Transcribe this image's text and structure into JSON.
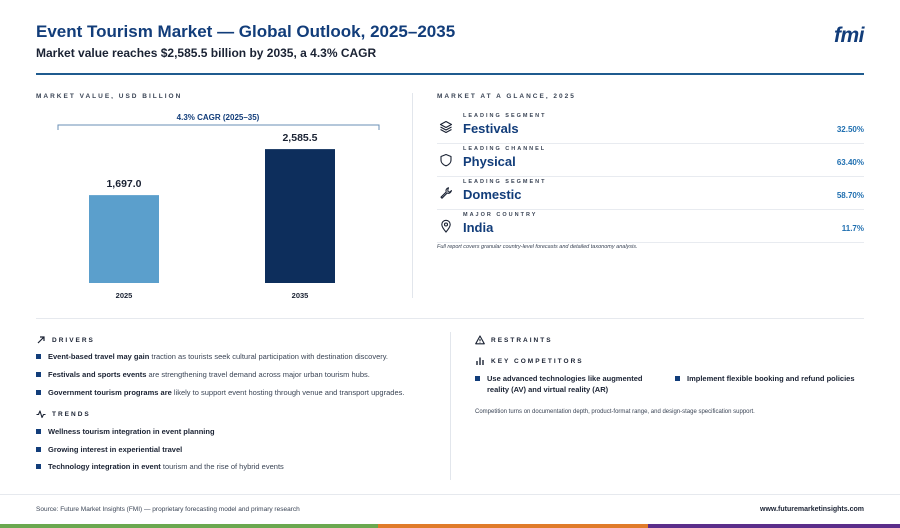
{
  "header": {
    "title": "Event Tourism Market — Global Outlook, 2025–2035",
    "subtitle": "Market value reaches $2,585.5 billion by 2035, a 4.3% CAGR",
    "logo": "fmi"
  },
  "chart_section": {
    "label": "MARKET VALUE, USD BILLION"
  },
  "chart_data": {
    "type": "bar",
    "categories": [
      "2025",
      "2035"
    ],
    "values": [
      1697.0,
      2585.5
    ],
    "value_labels": [
      "1,697.0",
      "2,585.5"
    ],
    "colors": [
      "#5b9fcc",
      "#0d2e5c"
    ],
    "annotation": "4.3% CAGR (2025–35)",
    "ylim": [
      0,
      2800
    ],
    "grid": false,
    "legend": "none"
  },
  "glance": {
    "label": "MARKET AT A GLANCE, 2025",
    "items": [
      {
        "caption": "LEADING SEGMENT",
        "name": "Festivals",
        "value": "32.50%",
        "icon": "layers-icon"
      },
      {
        "caption": "LEADING CHANNEL",
        "name": "Physical",
        "value": "63.40%",
        "icon": "shield-icon"
      },
      {
        "caption": "LEADING SEGMENT",
        "name": "Domestic",
        "value": "58.70%",
        "icon": "wrench-icon"
      },
      {
        "caption": "MAJOR COUNTRY",
        "name": "India",
        "value": "11.7%",
        "icon": "map-pin-icon"
      }
    ],
    "note": "Full report covers granular country-level forecasts and detailed taxonomy analysis."
  },
  "drivers": {
    "label": "DRIVERS",
    "items": [
      {
        "bold": "Event-based travel may gain",
        "rest": " traction as tourists seek cultural participation with destination discovery."
      },
      {
        "bold": "Festivals and sports events",
        "rest": " are strengthening travel demand across major urban tourism hubs."
      },
      {
        "bold": "Government tourism programs are",
        "rest": " likely to support event hosting through venue and transport upgrades."
      }
    ]
  },
  "trends": {
    "label": "TRENDS",
    "items": [
      {
        "bold": "Wellness tourism integration in event planning",
        "rest": ""
      },
      {
        "bold": "Growing interest in experiential travel",
        "rest": ""
      },
      {
        "bold": "Technology integration in event",
        "rest": " tourism and the rise of hybrid events"
      }
    ]
  },
  "restraints": {
    "label": "RESTRAINTS"
  },
  "competitors": {
    "label": "KEY COMPETITORS",
    "items": [
      "Use advanced technologies like augmented reality (AV) and virtual reality (AR)",
      "Implement flexible booking and refund policies"
    ],
    "note": "Competition turns on documentation depth, product-format range, and design-stage specification support."
  },
  "footer": {
    "source": "Source: Future Market Insights (FMI) — proprietary forecasting model and primary research",
    "site": "www.futuremarketinsights.com"
  },
  "colors": {
    "brand_navy": "#123d7a",
    "accent_blue": "#1f6fb0",
    "stripe_green": "#6aa84f",
    "stripe_orange": "#e07b2a",
    "stripe_purple": "#5b2d8a"
  }
}
